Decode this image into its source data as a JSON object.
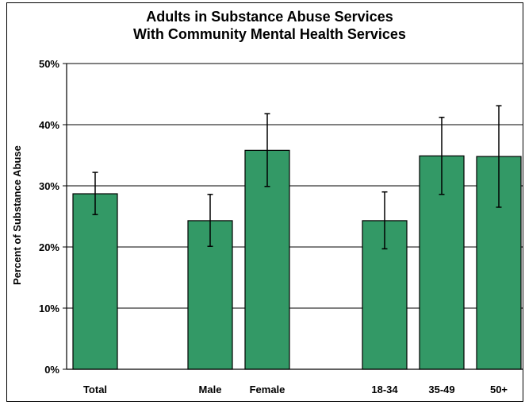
{
  "chart_data": {
    "type": "bar",
    "title": "Adults in Substance Abuse Services\nWith Community Mental Health Services",
    "ylabel": "Percent of Substance Abuse",
    "xlabel": "",
    "ylim": [
      0,
      50
    ],
    "y_ticks": [
      "0%",
      "10%",
      "20%",
      "30%",
      "40%",
      "50%"
    ],
    "grid": true,
    "legend": "none",
    "bar_color": "#339966",
    "categories": [
      "Total",
      "Male",
      "Female",
      "18-34",
      "35-49",
      "50+"
    ],
    "values": [
      28.7,
      24.3,
      35.8,
      24.3,
      34.9,
      34.8
    ],
    "error_low": [
      25.3,
      20.1,
      29.9,
      19.7,
      28.6,
      26.5
    ],
    "error_high": [
      32.2,
      28.6,
      41.8,
      29.0,
      41.2,
      43.1
    ]
  }
}
